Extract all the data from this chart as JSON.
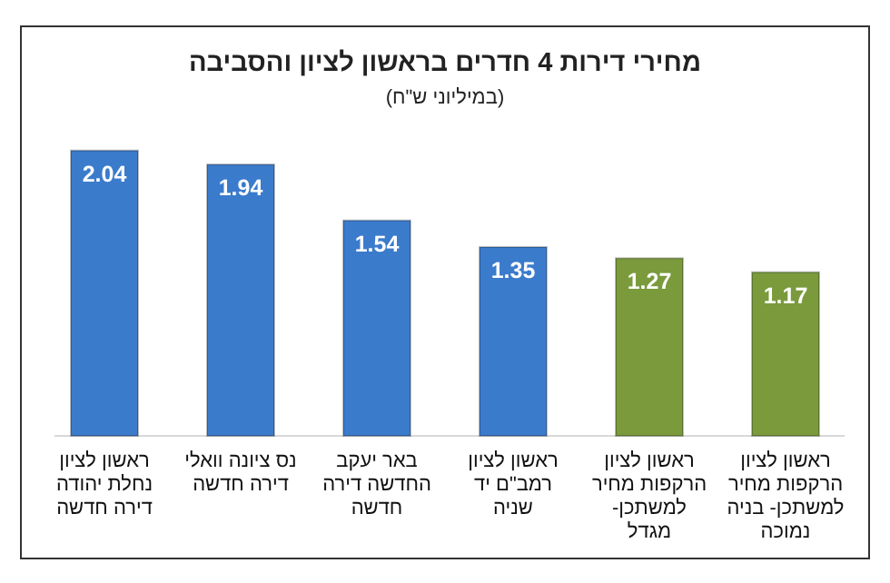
{
  "chart_data": {
    "type": "bar",
    "title": "מחירי דירות 4 חדרים בראשון לציון והסביבה",
    "subtitle": "(במיליוני ש\"ח)",
    "categories": [
      "ראשון לציון נחלת יהודה דירה חדשה",
      "נס ציונה וואלי דירה חדשה",
      "באר יעקב החדשה דירה חדשה",
      "ראשון לציון רמב\"ם יד שניה",
      "ראשון לציון הרקפות מחיר למשתכן- מגדל",
      "ראשון לציון הרקפות מחיר למשתכן- בניה נמוכה"
    ],
    "values": [
      2.04,
      1.94,
      1.54,
      1.35,
      1.27,
      1.17
    ],
    "colors": [
      "#3b7bcc",
      "#3b7bcc",
      "#3b7bcc",
      "#3b7bcc",
      "#7a9a3c",
      "#7a9a3c"
    ],
    "data_labels": true
  }
}
